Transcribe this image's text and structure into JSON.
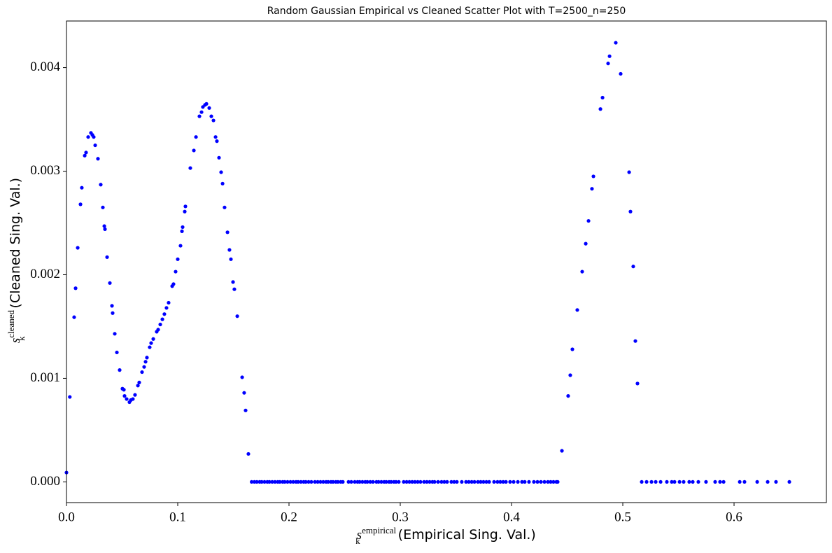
{
  "chart_data": {
    "type": "scatter",
    "title": "Random Gaussian Empirical vs Cleaned Scatter Plot with T=2500_n=250",
    "xlabel": {
      "symbol": "s",
      "sub": "k",
      "sup": "empirical",
      "text": "(Empirical Sing. Val.)"
    },
    "ylabel": {
      "symbol": "s",
      "sub": "k",
      "sup": "cleaned",
      "text": "(Cleaned Sing. Val.)"
    },
    "color": "#0000ff",
    "xlim": [
      0,
      0.683
    ],
    "ylim": [
      -0.0002,
      0.00445
    ],
    "xticks": [
      {
        "value": 0,
        "label": "0.0"
      },
      {
        "value": 0.1,
        "label": "0.1"
      },
      {
        "value": 0.2,
        "label": "0.2"
      },
      {
        "value": 0.3,
        "label": "0.3"
      },
      {
        "value": 0.4,
        "label": "0.4"
      },
      {
        "value": 0.5,
        "label": "0.5"
      },
      {
        "value": 0.6,
        "label": "0.6"
      }
    ],
    "yticks": [
      {
        "value": 0,
        "label": "0.000"
      },
      {
        "value": 0.001,
        "label": "0.001"
      },
      {
        "value": 0.002,
        "label": "0.002"
      },
      {
        "value": 0.003,
        "label": "0.003"
      },
      {
        "value": 0.004,
        "label": "0.004"
      }
    ],
    "x": [
      0,
      0.003,
      0.0069,
      0.0082,
      0.0101,
      0.0126,
      0.0138,
      0.0164,
      0.0176,
      0.0195,
      0.022,
      0.0233,
      0.0245,
      0.0258,
      0.0283,
      0.0308,
      0.0327,
      0.034,
      0.0346,
      0.0365,
      0.039,
      0.0409,
      0.0415,
      0.0434,
      0.0453,
      0.0478,
      0.0503,
      0.0516,
      0.0522,
      0.0541,
      0.0566,
      0.0579,
      0.0597,
      0.0616,
      0.0642,
      0.0654,
      0.0679,
      0.0698,
      0.0711,
      0.0723,
      0.0748,
      0.0761,
      0.078,
      0.0811,
      0.0824,
      0.0843,
      0.0862,
      0.088,
      0.0899,
      0.0918,
      0.095,
      0.0962,
      0.0981,
      0.1,
      0.1025,
      0.1038,
      0.1044,
      0.1063,
      0.1069,
      0.1113,
      0.1145,
      0.1164,
      0.1195,
      0.1214,
      0.1226,
      0.1245,
      0.1258,
      0.1283,
      0.1302,
      0.1321,
      0.134,
      0.1352,
      0.1371,
      0.139,
      0.1403,
      0.1421,
      0.1447,
      0.1465,
      0.1478,
      0.1497,
      0.1509,
      0.1535,
      0.1579,
      0.1597,
      0.161,
      0.1635,
      0.1664,
      0.1689,
      0.1711,
      0.1736,
      0.1755,
      0.178,
      0.1805,
      0.1824,
      0.1849,
      0.1874,
      0.1899,
      0.1918,
      0.1943,
      0.1962,
      0.1987,
      0.2013,
      0.2038,
      0.2063,
      0.2082,
      0.2107,
      0.2132,
      0.2151,
      0.2176,
      0.2201,
      0.2233,
      0.2258,
      0.2283,
      0.2308,
      0.2333,
      0.2352,
      0.2377,
      0.2396,
      0.2421,
      0.244,
      0.2465,
      0.2484,
      0.2535,
      0.256,
      0.2591,
      0.2616,
      0.2635,
      0.266,
      0.2685,
      0.2704,
      0.273,
      0.2755,
      0.2786,
      0.2805,
      0.283,
      0.2855,
      0.2874,
      0.2899,
      0.2918,
      0.2943,
      0.2962,
      0.2987,
      0.3031,
      0.3057,
      0.3082,
      0.3107,
      0.3132,
      0.3157,
      0.3182,
      0.3214,
      0.3239,
      0.3264,
      0.3289,
      0.3308,
      0.334,
      0.3371,
      0.3396,
      0.3421,
      0.3459,
      0.3484,
      0.3509,
      0.3553,
      0.3591,
      0.3616,
      0.3642,
      0.3667,
      0.3698,
      0.3723,
      0.3748,
      0.3774,
      0.3799,
      0.3843,
      0.3874,
      0.3899,
      0.3925,
      0.395,
      0.3987,
      0.4019,
      0.4057,
      0.4094,
      0.4119,
      0.4157,
      0.4201,
      0.4233,
      0.4264,
      0.4296,
      0.4327,
      0.4352,
      0.4377,
      0.4403,
      0.4415,
      0.4453,
      0.4509,
      0.4528,
      0.4547,
      0.4591,
      0.4635,
      0.4667,
      0.4692,
      0.4723,
      0.4736,
      0.4799,
      0.4818,
      0.4868,
      0.4881,
      0.4937,
      0.4981,
      0.5057,
      0.5069,
      0.5094,
      0.5113,
      0.5132,
      0.517,
      0.5214,
      0.5258,
      0.5296,
      0.534,
      0.5396,
      0.544,
      0.5465,
      0.551,
      0.5547,
      0.5597,
      0.5629,
      0.5679,
      0.5748,
      0.583,
      0.5874,
      0.5906,
      0.6051,
      0.6094,
      0.6208,
      0.6302,
      0.6377,
      0.6497
    ],
    "values": [
      9e-05,
      0.00082,
      0.00159,
      0.00187,
      0.00226,
      0.00268,
      0.00284,
      0.00315,
      0.00318,
      0.00333,
      0.00337,
      0.00335,
      0.00333,
      0.00325,
      0.00312,
      0.00287,
      0.00265,
      0.00247,
      0.00244,
      0.00217,
      0.00192,
      0.0017,
      0.00163,
      0.00143,
      0.00125,
      0.00108,
      0.0009,
      0.00089,
      0.00083,
      0.0008,
      0.00077,
      0.00079,
      0.0008,
      0.00084,
      0.00093,
      0.00096,
      0.00106,
      0.00111,
      0.00116,
      0.0012,
      0.0013,
      0.00134,
      0.00138,
      0.00145,
      0.00147,
      0.00152,
      0.00157,
      0.00162,
      0.00168,
      0.00173,
      0.00189,
      0.00191,
      0.00203,
      0.00215,
      0.00228,
      0.00242,
      0.00246,
      0.00261,
      0.00266,
      0.00303,
      0.0032,
      0.00333,
      0.00353,
      0.00357,
      0.00362,
      0.00364,
      0.00365,
      0.00361,
      0.00353,
      0.00349,
      0.00333,
      0.00329,
      0.00313,
      0.00299,
      0.00288,
      0.00265,
      0.00241,
      0.00224,
      0.00215,
      0.00193,
      0.00186,
      0.0016,
      0.00101,
      0.00086,
      0.00069,
      0.00027,
      0,
      0,
      0,
      0,
      0,
      0,
      0,
      0,
      0,
      0,
      0,
      0,
      0,
      0,
      0,
      0,
      0,
      0,
      0,
      0,
      0,
      0,
      0,
      0,
      0,
      0,
      0,
      0,
      0,
      0,
      0,
      0,
      0,
      0,
      0,
      0,
      0,
      0,
      0,
      0,
      0,
      0,
      0,
      0,
      0,
      0,
      0,
      0,
      0,
      0,
      0,
      0,
      0,
      0,
      0,
      0,
      0,
      0,
      0,
      0,
      0,
      0,
      0,
      0,
      0,
      0,
      0,
      0,
      0,
      0,
      0,
      0,
      0,
      0,
      0,
      0,
      0,
      0,
      0,
      0,
      0,
      0,
      0,
      0,
      0,
      0,
      0,
      0,
      0,
      0,
      0,
      0,
      0,
      0,
      0,
      0,
      0,
      0,
      0,
      0,
      0,
      0,
      0,
      0,
      0,
      0.0003,
      0.00083,
      0.00103,
      0.00128,
      0.00166,
      0.00203,
      0.0023,
      0.00252,
      0.00283,
      0.00295,
      0.0036,
      0.00371,
      0.00404,
      0.00411,
      0.00424,
      0.00394,
      0.00299,
      0.00261,
      0.00208,
      0.00136,
      0.00095,
      0,
      0,
      0,
      0,
      0,
      0,
      0,
      0,
      0,
      0,
      0,
      0,
      0,
      0,
      0,
      0,
      0,
      0,
      0,
      0,
      0,
      0,
      0
    ]
  }
}
